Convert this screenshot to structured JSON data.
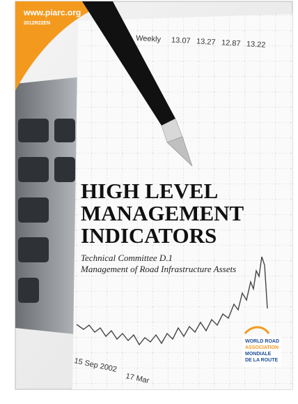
{
  "header": {
    "url": "www.piarc.org",
    "code": "2012R22EN"
  },
  "background": {
    "weekly_label": "Weekly",
    "quotes": [
      "13.07",
      "13.27",
      "12.87",
      "13.22"
    ],
    "dates": [
      "15 Sep 2002",
      "17 Mar"
    ]
  },
  "title": {
    "lines": [
      "HIGH LEVEL",
      "MANAGEMENT",
      "INDICATORS"
    ]
  },
  "subtitle": {
    "lines": [
      "Technical Committee D.1",
      "Management of Road Infrastructure Assets"
    ]
  },
  "logo": {
    "lines": [
      "WORLD ROAD",
      "ASSOCIATION",
      "MONDIALE",
      "DE LA ROUTE"
    ]
  }
}
